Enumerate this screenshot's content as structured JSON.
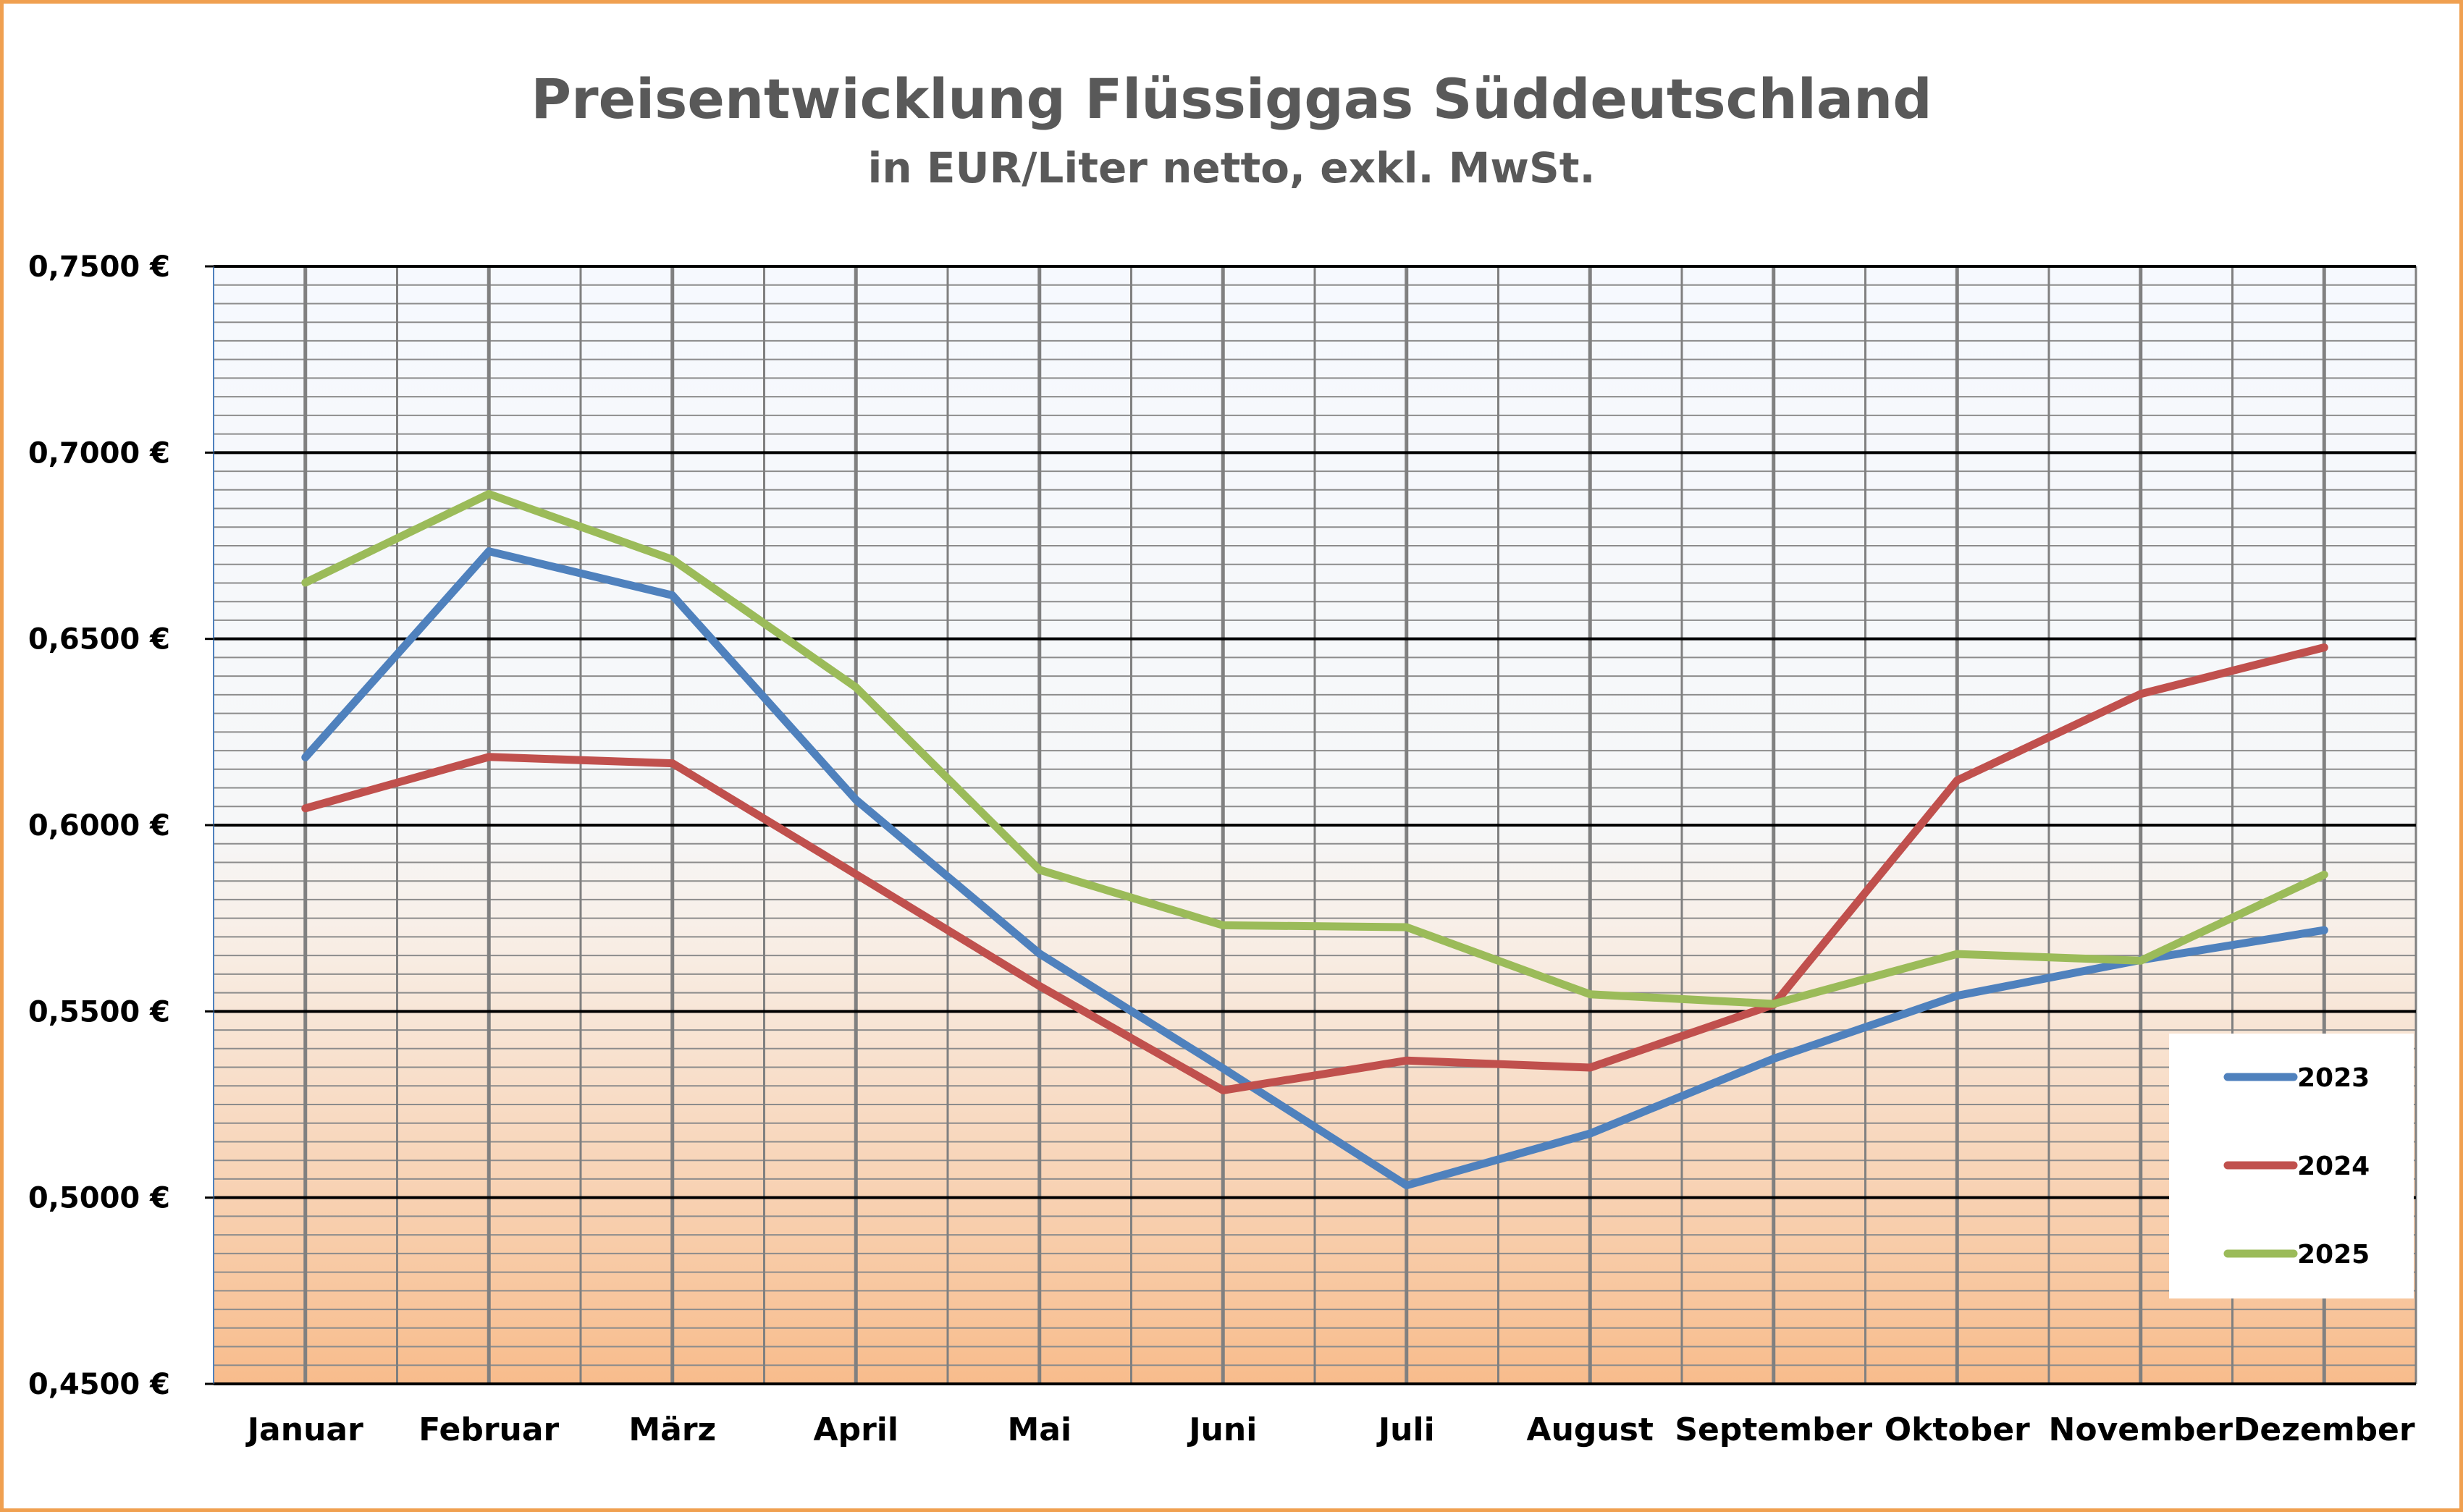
{
  "chart_data": {
    "type": "line",
    "title": "Preisentwicklung Flüssiggas Süddeutschland",
    "subtitle": "in EUR/Liter netto, exkl. MwSt.",
    "categories": [
      "Januar",
      "Februar",
      "März",
      "April",
      "Mai",
      "Juni",
      "Juli",
      "August",
      "September",
      "Oktober",
      "November",
      "Dezember"
    ],
    "y_tick_values": [
      0.45,
      0.5,
      0.55,
      0.6,
      0.65,
      0.7,
      0.75
    ],
    "y_tick_labels": [
      "0,4500 €",
      "0,5000 €",
      "0,5500 €",
      "0,6000 €",
      "0,6500 €",
      "0,7000 €",
      "0,7500 €"
    ],
    "ylim": [
      0.45,
      0.75
    ],
    "grid": true,
    "legend_position": "bottom-right",
    "series": [
      {
        "name": "2023",
        "color": "#4f81bd",
        "values": [
          0.6182,
          0.6735,
          0.6617,
          0.6068,
          0.5655,
          0.5347,
          0.5033,
          0.5172,
          0.5373,
          0.5542,
          0.5638,
          0.5718
        ]
      },
      {
        "name": "2024",
        "color": "#c0504d",
        "values": [
          0.6045,
          0.6183,
          0.6166,
          0.5868,
          0.5568,
          0.5288,
          0.5368,
          0.5349,
          0.5518,
          0.612,
          0.6352,
          0.6477
        ]
      },
      {
        "name": "2025",
        "color": "#9bbb59",
        "values": [
          0.6651,
          0.6889,
          0.6713,
          0.637,
          0.588,
          0.5731,
          0.5726,
          0.5546,
          0.552,
          0.5654,
          0.5636,
          0.5867
        ]
      }
    ]
  }
}
